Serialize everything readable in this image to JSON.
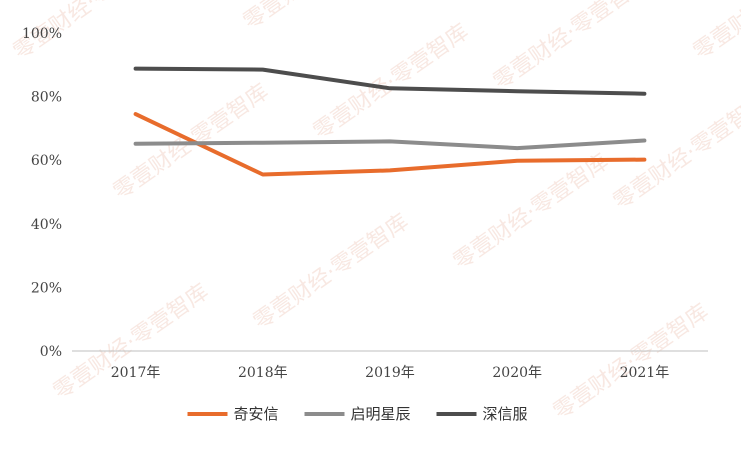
{
  "watermark_text": "零壹财经·零壹智库",
  "chart_data": {
    "type": "line",
    "title": "",
    "xlabel": "",
    "ylabel": "",
    "categories": [
      "2017年",
      "2018年",
      "2019年",
      "2020年",
      "2021年"
    ],
    "ylim": [
      0,
      100
    ],
    "yticks": [
      "0%",
      "20%",
      "40%",
      "60%",
      "80%",
      "100%"
    ],
    "ytick_values": [
      0,
      20,
      40,
      60,
      80,
      100
    ],
    "grid": false,
    "legend_position": "bottom",
    "series": [
      {
        "name": "奇安信",
        "color": "#e86c2c",
        "values": [
          74.5,
          55.5,
          56.8,
          59.8,
          60.2
        ]
      },
      {
        "name": "启明星辰",
        "color": "#8c8c8c",
        "values": [
          65.2,
          65.5,
          65.9,
          63.8,
          66.2
        ]
      },
      {
        "name": "深信服",
        "color": "#4d4d4d",
        "values": [
          88.8,
          88.5,
          82.6,
          81.7,
          80.9
        ]
      }
    ]
  }
}
